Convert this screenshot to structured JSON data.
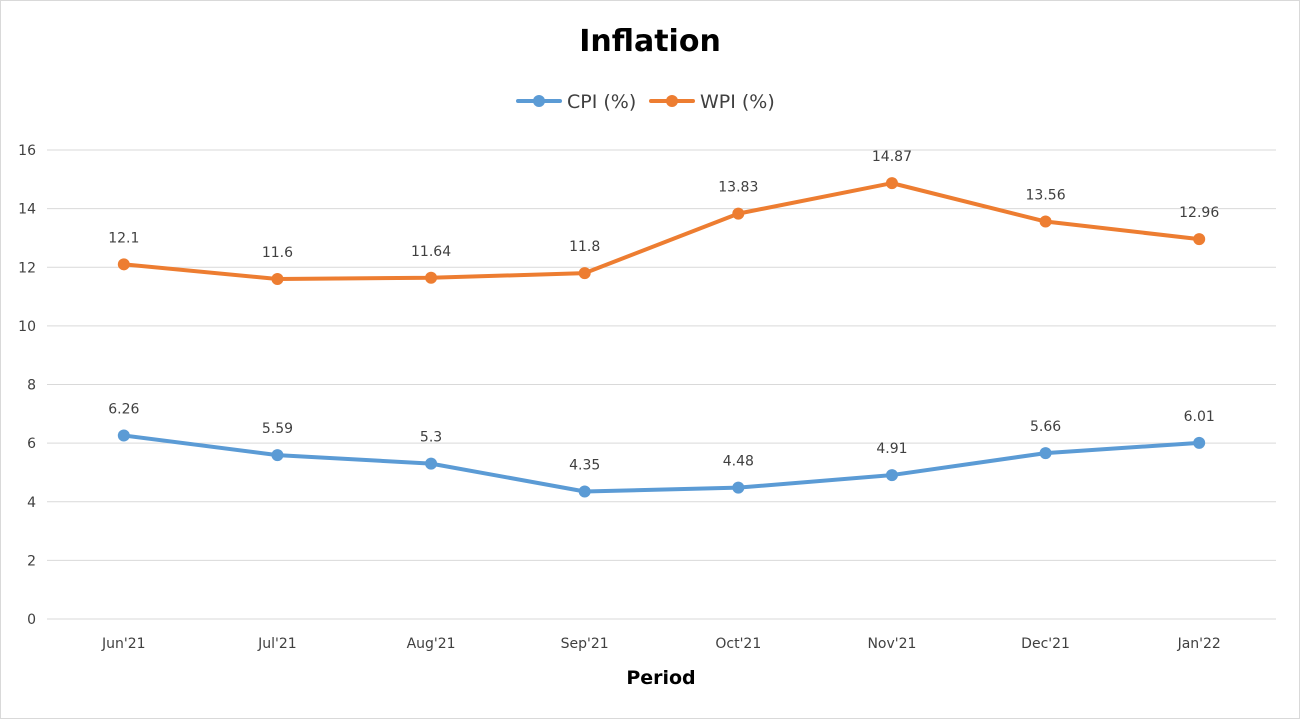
{
  "chart_data": {
    "type": "line",
    "title": "Inflation",
    "xlabel": "Period",
    "ylabel": "",
    "categories": [
      "Jun'21",
      "Jul'21",
      "Aug'21",
      "Sep'21",
      "Oct'21",
      "Nov'21",
      "Dec'21",
      "Jan'22"
    ],
    "ylim": [
      0,
      16
    ],
    "yticks": [
      "0",
      "2",
      "4",
      "6",
      "8",
      "10",
      "12",
      "14",
      "16"
    ],
    "grid": true,
    "legend_position": "top-center",
    "series": [
      {
        "name": "CPI (%)",
        "color": "#5b9bd5",
        "values": [
          6.26,
          5.59,
          5.3,
          4.35,
          4.48,
          4.91,
          5.66,
          6.01
        ],
        "labels": [
          "6.26",
          "5.59",
          "5.3",
          "4.35",
          "4.48",
          "4.91",
          "5.66",
          "6.01"
        ]
      },
      {
        "name": "WPI (%)",
        "color": "#ed7d31",
        "values": [
          12.1,
          11.6,
          11.64,
          11.8,
          13.83,
          14.87,
          13.56,
          12.96
        ],
        "labels": [
          "12.1",
          "11.6",
          "11.64",
          "11.8",
          "13.83",
          "14.87",
          "13.56",
          "12.96"
        ]
      }
    ]
  }
}
